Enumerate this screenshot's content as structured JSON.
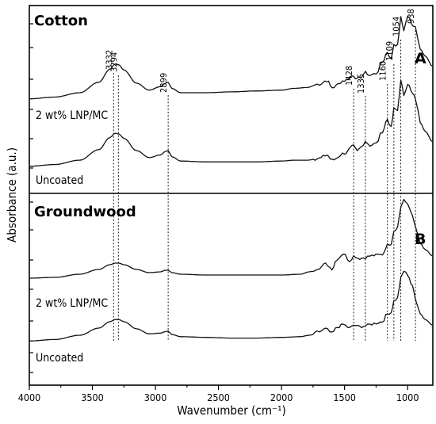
{
  "chart_data": {
    "type": "line",
    "xlabel": "Wavenumber (cm⁻¹)",
    "ylabel": "Absorbance (a.u.)",
    "xlim": [
      4000,
      800
    ],
    "x_ticks": [
      4000,
      3500,
      3000,
      2500,
      2000,
      1500,
      1000
    ],
    "x_reversed": true,
    "peaks": [
      3332,
      3294,
      2899,
      1428,
      1335,
      1160,
      1109,
      1054,
      938
    ],
    "panels": [
      {
        "title": "Cotton",
        "letter": "A",
        "series": [
          {
            "name": "2 wt% LNP/MC",
            "x": [
              4000,
              3800,
              3600,
              3450,
              3360,
              3320,
              3290,
              3250,
              3150,
              3050,
              2960,
              2920,
              2899,
              2870,
              2800,
              2600,
              2400,
              2200,
              2000,
              1900,
              1800,
              1700,
              1640,
              1600,
              1500,
              1428,
              1400,
              1370,
              1335,
              1300,
              1250,
              1200,
              1160,
              1130,
              1109,
              1080,
              1054,
              1030,
              1000,
              960,
              938,
              900,
              860,
              800
            ],
            "y": [
              0.03,
              0.05,
              0.1,
              0.22,
              0.37,
              0.43,
              0.42,
              0.36,
              0.21,
              0.13,
              0.17,
              0.21,
              0.22,
              0.15,
              0.1,
              0.1,
              0.11,
              0.12,
              0.13,
              0.15,
              0.16,
              0.2,
              0.24,
              0.16,
              0.24,
              0.3,
              0.25,
              0.28,
              0.33,
              0.3,
              0.32,
              0.45,
              0.57,
              0.48,
              0.66,
              0.64,
              0.96,
              0.82,
              0.98,
              0.88,
              0.86,
              0.6,
              0.52,
              0.4
            ]
          },
          {
            "name": "Uncoated",
            "x": [
              4000,
              3800,
              3600,
              3450,
              3360,
              3320,
              3290,
              3250,
              3150,
              3050,
              2960,
              2920,
              2899,
              2870,
              2800,
              2600,
              2400,
              2200,
              2000,
              1900,
              1800,
              1700,
              1640,
              1600,
              1500,
              1428,
              1400,
              1370,
              1335,
              1300,
              1250,
              1200,
              1160,
              1130,
              1109,
              1080,
              1054,
              1030,
              1000,
              960,
              938,
              900,
              860,
              800
            ],
            "y": [
              0.02,
              0.04,
              0.09,
              0.21,
              0.35,
              0.4,
              0.39,
              0.34,
              0.2,
              0.12,
              0.15,
              0.19,
              0.2,
              0.13,
              0.08,
              0.07,
              0.07,
              0.07,
              0.08,
              0.09,
              0.09,
              0.11,
              0.15,
              0.09,
              0.17,
              0.25,
              0.19,
              0.24,
              0.31,
              0.26,
              0.28,
              0.42,
              0.56,
              0.46,
              0.68,
              0.66,
              1.0,
              0.84,
              0.97,
              0.85,
              0.8,
              0.52,
              0.42,
              0.3
            ]
          }
        ]
      },
      {
        "title": "Groundwood",
        "letter": "B",
        "series": [
          {
            "name": "2 wt% LNP/MC",
            "x": [
              4000,
              3800,
              3600,
              3450,
              3360,
              3320,
              3290,
              3250,
              3150,
              3050,
              2960,
              2920,
              2899,
              2870,
              2800,
              2600,
              2400,
              2200,
              2000,
              1850,
              1780,
              1700,
              1650,
              1600,
              1560,
              1510,
              1460,
              1428,
              1380,
              1335,
              1300,
              1250,
              1200,
              1160,
              1130,
              1109,
              1080,
              1054,
              1030,
              1000,
              960,
              938,
              900,
              860,
              800
            ],
            "y": [
              0.02,
              0.03,
              0.07,
              0.13,
              0.19,
              0.21,
              0.21,
              0.19,
              0.13,
              0.09,
              0.1,
              0.12,
              0.12,
              0.09,
              0.07,
              0.06,
              0.06,
              0.06,
              0.06,
              0.07,
              0.1,
              0.15,
              0.2,
              0.14,
              0.26,
              0.33,
              0.24,
              0.3,
              0.27,
              0.28,
              0.3,
              0.31,
              0.32,
              0.44,
              0.46,
              0.62,
              0.66,
              0.92,
              1.0,
              0.96,
              0.8,
              0.66,
              0.46,
              0.38,
              0.3
            ]
          },
          {
            "name": "Uncoated",
            "x": [
              4000,
              3800,
              3600,
              3450,
              3360,
              3320,
              3290,
              3250,
              3150,
              3050,
              2960,
              2920,
              2899,
              2870,
              2800,
              2600,
              2400,
              2200,
              2000,
              1850,
              1780,
              1700,
              1650,
              1600,
              1560,
              1510,
              1460,
              1428,
              1380,
              1335,
              1300,
              1250,
              1200,
              1160,
              1130,
              1109,
              1080,
              1054,
              1030,
              1000,
              960,
              938,
              900,
              860,
              800
            ],
            "y": [
              0.02,
              0.04,
              0.1,
              0.2,
              0.29,
              0.32,
              0.32,
              0.29,
              0.19,
              0.12,
              0.13,
              0.15,
              0.16,
              0.11,
              0.08,
              0.07,
              0.06,
              0.06,
              0.07,
              0.08,
              0.1,
              0.15,
              0.19,
              0.13,
              0.21,
              0.25,
              0.2,
              0.24,
              0.22,
              0.23,
              0.25,
              0.27,
              0.29,
              0.4,
              0.42,
              0.58,
              0.62,
              0.9,
              1.0,
              0.95,
              0.78,
              0.62,
              0.4,
              0.32,
              0.24
            ]
          }
        ]
      }
    ]
  }
}
